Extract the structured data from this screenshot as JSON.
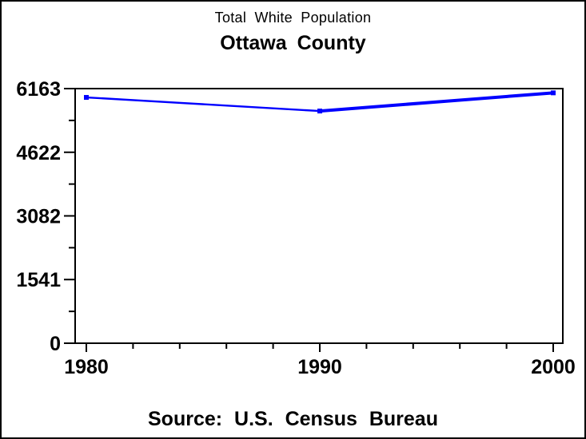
{
  "chart": {
    "title": "Total White Population",
    "subtitle": "Ottawa County",
    "footnote": "Source: U.S. Census Bureau"
  },
  "chart_data": {
    "type": "line",
    "title": "Total White Population",
    "subtitle": "Ottawa County",
    "footnote": "Source: U.S. Census Bureau",
    "xlabel": "",
    "ylabel": "",
    "xlim": [
      1980,
      2000
    ],
    "ylim": [
      0,
      6163
    ],
    "x_ticks": [
      1980,
      1990,
      2000
    ],
    "x_tick_labels": [
      "1980",
      "1990",
      "2000"
    ],
    "x_minor_step": 2,
    "y_ticks": [
      0,
      1541,
      3082,
      4622,
      6163
    ],
    "y_tick_labels": [
      "0",
      "1541",
      "3082",
      "4622",
      "6163"
    ],
    "y_minor": "halfway",
    "grid": false,
    "frame": true,
    "legend": "none",
    "series": [
      {
        "name": "Total White Population",
        "color": "#0000ff",
        "marker": "square",
        "x": [
          1980,
          1990,
          2000
        ],
        "values": [
          5950,
          5620,
          6060
        ],
        "segment_widths": [
          2.4,
          4
        ]
      }
    ],
    "colors": {
      "line": "#0000ff",
      "axis": "#000000",
      "background": "#ffffff",
      "text": "#000000"
    }
  }
}
